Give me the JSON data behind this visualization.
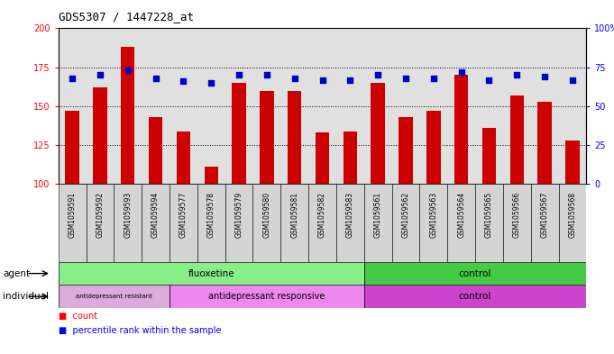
{
  "title": "GDS5307 / 1447228_at",
  "samples": [
    "GSM1059591",
    "GSM1059592",
    "GSM1059593",
    "GSM1059594",
    "GSM1059577",
    "GSM1059578",
    "GSM1059579",
    "GSM1059580",
    "GSM1059581",
    "GSM1059582",
    "GSM1059583",
    "GSM1059561",
    "GSM1059562",
    "GSM1059563",
    "GSM1059564",
    "GSM1059565",
    "GSM1059566",
    "GSM1059567",
    "GSM1059568"
  ],
  "counts": [
    147,
    162,
    188,
    143,
    134,
    111,
    165,
    160,
    160,
    133,
    134,
    165,
    143,
    147,
    170,
    136,
    157,
    153,
    128
  ],
  "percentiles": [
    68,
    70,
    73,
    68,
    66,
    65,
    70,
    70,
    68,
    67,
    67,
    70,
    68,
    68,
    72,
    67,
    70,
    69,
    67
  ],
  "ylim_left": [
    100,
    200
  ],
  "ylim_right": [
    0,
    100
  ],
  "yticks_left": [
    100,
    125,
    150,
    175,
    200
  ],
  "yticks_right": [
    0,
    25,
    50,
    75,
    100
  ],
  "fluox_color_light": "#ccffcc",
  "fluox_color": "#88ee88",
  "ctrl_color": "#44cc44",
  "resist_color": "#ddaadd",
  "respon_color": "#ee88ee",
  "indiv_ctrl_color": "#cc44cc",
  "bar_color": "#cc0000",
  "dot_color": "#0000cc",
  "background_color": "#ffffff",
  "plot_bg_color": "#e0e0e0",
  "tick_label_bg": "#d0d0d0"
}
